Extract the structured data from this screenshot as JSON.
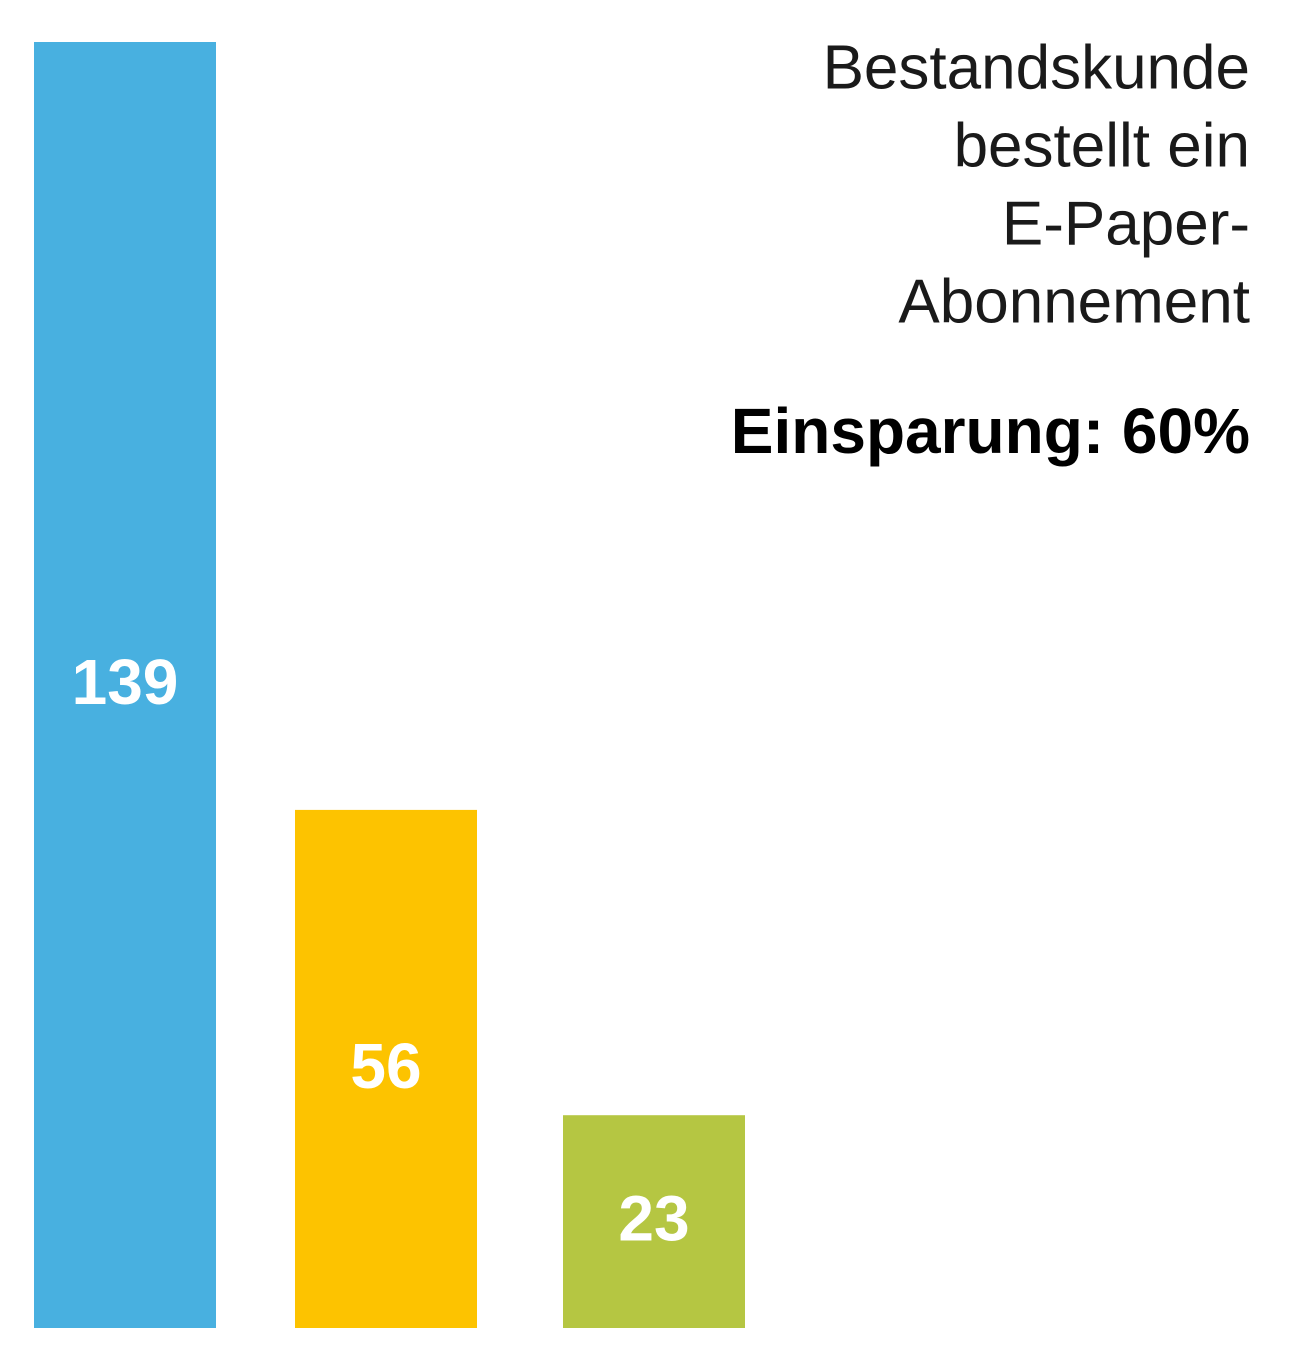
{
  "chart_data": {
    "type": "bar",
    "title": [
      "Bestandskunde",
      "bestellt ein",
      "E-Paper-",
      "Abonnement"
    ],
    "subtitle": "Einsparung: 60%",
    "categories": [
      null,
      null,
      null
    ],
    "values": [
      139,
      56,
      23
    ],
    "colors": [
      "#48b0e0",
      "#fdc300",
      "#b5c642"
    ],
    "ylim": [
      0,
      139
    ]
  }
}
